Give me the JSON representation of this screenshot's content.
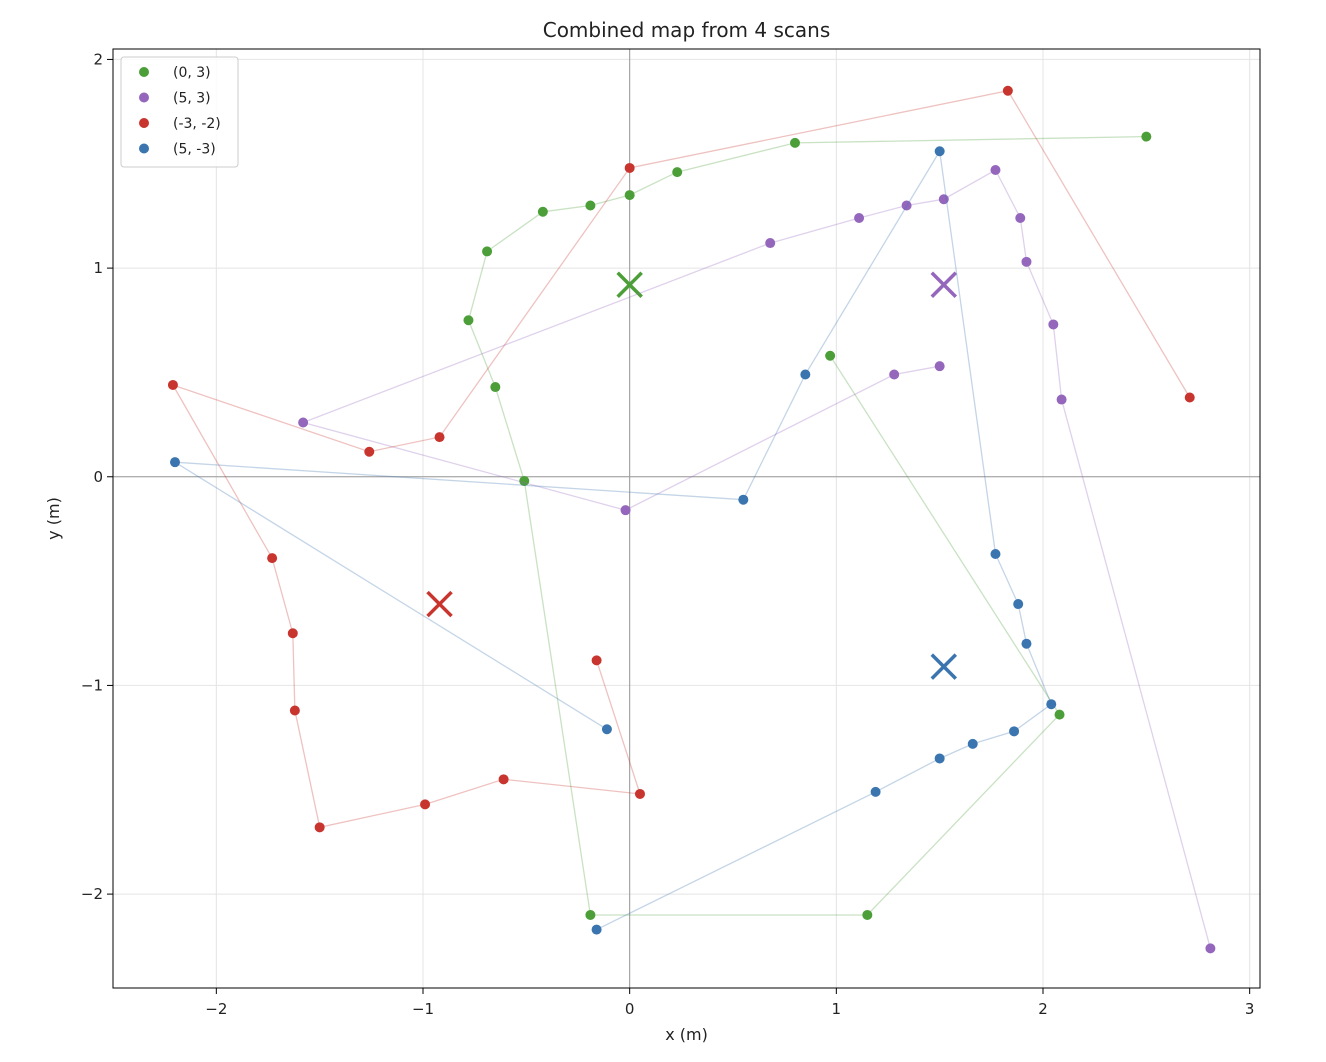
{
  "chart_data": {
    "type": "scatter",
    "title": "Combined map from 4 scans",
    "xlabel": "x (m)",
    "ylabel": "y (m)",
    "xlim": [
      -2.5,
      3.05
    ],
    "ylim": [
      -2.45,
      2.05
    ],
    "xticks": [
      -2,
      -1,
      0,
      1,
      2,
      3
    ],
    "yticks": [
      -2,
      -1,
      0,
      1,
      2
    ],
    "xtick_labels": [
      "−2",
      "−1",
      "0",
      "1",
      "2",
      "3"
    ],
    "ytick_labels": [
      "−2",
      "−1",
      "0",
      "1",
      "2"
    ],
    "grid": true,
    "legend": "top-left",
    "series": [
      {
        "name": "(0, 3)",
        "color": "#4c9f38",
        "marker_xy": [
          0.0,
          0.92
        ],
        "points": [
          [
            2.5,
            1.63
          ],
          [
            0.8,
            1.6
          ],
          [
            0.23,
            1.46
          ],
          [
            0.0,
            1.35
          ],
          [
            -0.19,
            1.3
          ],
          [
            -0.42,
            1.27
          ],
          [
            -0.69,
            1.08
          ],
          [
            -0.78,
            0.75
          ],
          [
            -0.65,
            0.43
          ],
          [
            -0.51,
            -0.02
          ],
          [
            -0.19,
            -2.1
          ],
          [
            1.15,
            -2.1
          ],
          [
            2.08,
            -1.14
          ],
          [
            0.97,
            0.58
          ]
        ]
      },
      {
        "name": "(5, 3)",
        "color": "#9467bd",
        "marker_xy": [
          1.52,
          0.92
        ],
        "points": [
          [
            2.81,
            -2.26
          ],
          [
            2.09,
            0.37
          ],
          [
            2.05,
            0.73
          ],
          [
            1.92,
            1.03
          ],
          [
            1.89,
            1.24
          ],
          [
            1.77,
            1.47
          ],
          [
            1.52,
            1.33
          ],
          [
            1.34,
            1.3
          ],
          [
            1.11,
            1.24
          ],
          [
            0.68,
            1.12
          ],
          [
            -1.58,
            0.26
          ],
          [
            -0.02,
            -0.16
          ],
          [
            1.28,
            0.49
          ],
          [
            1.5,
            0.53
          ]
        ]
      },
      {
        "name": "(-3, -2)",
        "color": "#c8352e",
        "marker_xy": [
          -0.92,
          -0.61
        ],
        "points": [
          [
            2.71,
            0.38
          ],
          [
            1.83,
            1.85
          ],
          [
            0.0,
            1.48
          ],
          [
            -0.92,
            0.19
          ],
          [
            -1.26,
            0.12
          ],
          [
            -2.21,
            0.44
          ],
          [
            -1.73,
            -0.39
          ],
          [
            -1.63,
            -0.75
          ],
          [
            -1.62,
            -1.12
          ],
          [
            -1.5,
            -1.68
          ],
          [
            -0.99,
            -1.57
          ],
          [
            -0.61,
            -1.45
          ],
          [
            0.05,
            -1.52
          ],
          [
            -0.16,
            -0.88
          ]
        ]
      },
      {
        "name": "(5, -3)",
        "color": "#3a75b0",
        "marker_xy": [
          1.52,
          -0.91
        ],
        "points": [
          [
            -0.11,
            -1.21
          ],
          [
            -2.2,
            0.07
          ],
          [
            0.55,
            -0.11
          ],
          [
            0.85,
            0.49
          ],
          [
            1.5,
            1.56
          ],
          [
            1.77,
            -0.37
          ],
          [
            1.88,
            -0.61
          ],
          [
            1.92,
            -0.8
          ],
          [
            2.04,
            -1.09
          ],
          [
            1.86,
            -1.22
          ],
          [
            1.66,
            -1.28
          ],
          [
            1.5,
            -1.35
          ],
          [
            1.19,
            -1.51
          ],
          [
            -0.16,
            -2.17
          ]
        ]
      }
    ]
  }
}
